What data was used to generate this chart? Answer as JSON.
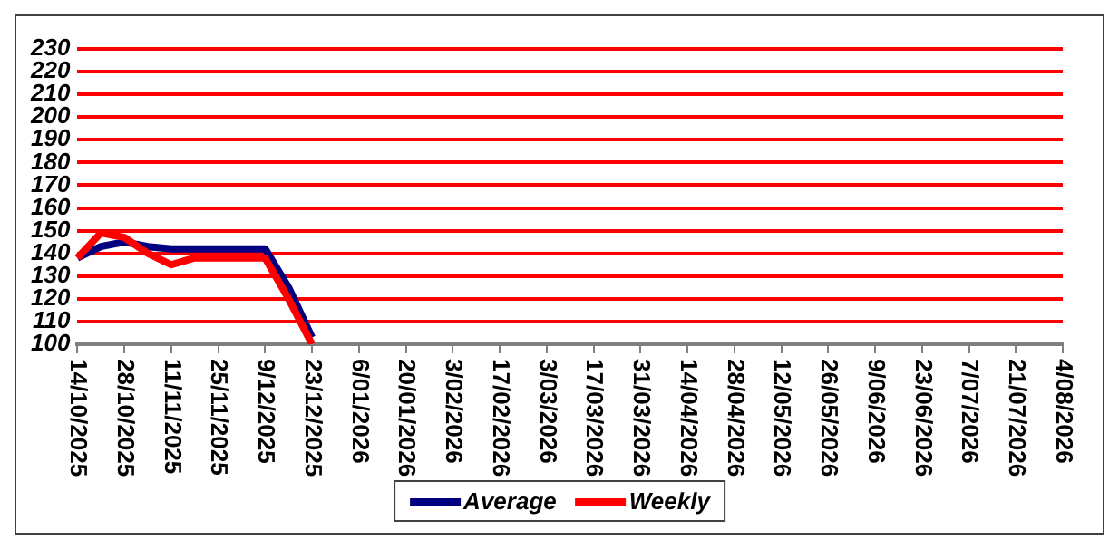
{
  "chart_data": {
    "type": "line",
    "categories": [
      "14/10/2025",
      null,
      "28/10/2025",
      null,
      "11/11/2025",
      null,
      "25/11/2025",
      null,
      "9/12/2025",
      null,
      "23/12/2025",
      null,
      "6/01/2026",
      null,
      "20/01/2026",
      null,
      "3/02/2026",
      null,
      "17/02/2026",
      null,
      "3/03/2026",
      null,
      "17/03/2026",
      null,
      "31/03/2026",
      null,
      "14/04/2026",
      null,
      "28/04/2026",
      null,
      "12/05/2026",
      null,
      "26/05/2026",
      null,
      "9/06/2026",
      null,
      "23/06/2026",
      null,
      "7/07/2026",
      null,
      "21/07/2026",
      null,
      "4/08/2026"
    ],
    "series": [
      {
        "name": "Average",
        "color": "#000080",
        "values": [
          138,
          143,
          145,
          143,
          142,
          142,
          142,
          142,
          142,
          125,
          103,
          null,
          null,
          null,
          null,
          null,
          null,
          null,
          null,
          null,
          null,
          null,
          null,
          null,
          null,
          null,
          null,
          null,
          null,
          null,
          null,
          null,
          null,
          null,
          null,
          null,
          null,
          null,
          null,
          null,
          null,
          null,
          null
        ]
      },
      {
        "name": "Weekly",
        "color": "#ff0000",
        "values": [
          138,
          149,
          147,
          140,
          135,
          138,
          138,
          138,
          138,
          120,
          100,
          null,
          null,
          null,
          null,
          null,
          null,
          null,
          null,
          null,
          null,
          null,
          null,
          null,
          null,
          null,
          null,
          null,
          null,
          null,
          null,
          null,
          null,
          null,
          null,
          null,
          null,
          null,
          null,
          null,
          null,
          null,
          null
        ]
      }
    ],
    "ylim": [
      100,
      230
    ],
    "yticks": [
      100,
      110,
      120,
      130,
      140,
      150,
      160,
      170,
      180,
      190,
      200,
      210,
      220,
      230
    ],
    "grid": "y",
    "legend": "bottom",
    "marker": "none",
    "line_style": "solid"
  }
}
